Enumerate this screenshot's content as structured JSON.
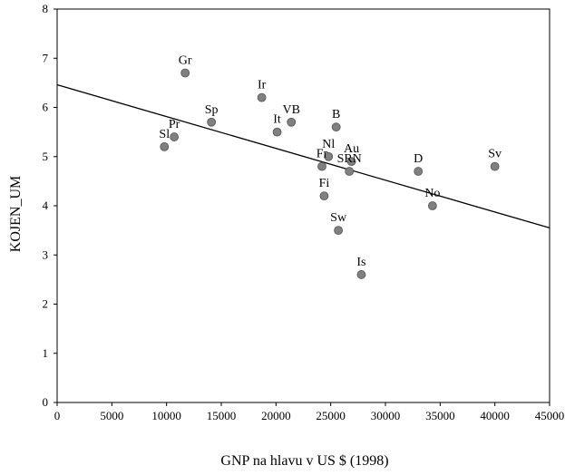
{
  "chart_data": {
    "type": "scatter",
    "xlabel": "GNP na hlavu v US $ (1998)",
    "ylabel": "KOJEN_UM",
    "xlim": [
      0,
      45000
    ],
    "ylim": [
      0,
      8
    ],
    "xticks": [
      0,
      5000,
      10000,
      15000,
      20000,
      25000,
      30000,
      35000,
      40000,
      45000
    ],
    "yticks": [
      0,
      1,
      2,
      3,
      4,
      5,
      6,
      7,
      8
    ],
    "grid": false,
    "marker_color": "#808080",
    "points": [
      {
        "label": "Gr",
        "x": 11700,
        "y": 6.7
      },
      {
        "label": "Ir",
        "x": 18700,
        "y": 6.2
      },
      {
        "label": "Sp",
        "x": 14100,
        "y": 5.7
      },
      {
        "label": "VB",
        "x": 21400,
        "y": 5.7
      },
      {
        "label": "B",
        "x": 25500,
        "y": 5.6
      },
      {
        "label": "It",
        "x": 20100,
        "y": 5.5
      },
      {
        "label": "Pr",
        "x": 10700,
        "y": 5.4
      },
      {
        "label": "Sl",
        "x": 9800,
        "y": 5.2
      },
      {
        "label": "Nl",
        "x": 24800,
        "y": 5.0
      },
      {
        "label": "Au",
        "x": 26900,
        "y": 4.9
      },
      {
        "label": "Fr",
        "x": 24200,
        "y": 4.8
      },
      {
        "label": "SRN",
        "x": 26700,
        "y": 4.7
      },
      {
        "label": "D",
        "x": 33000,
        "y": 4.7
      },
      {
        "label": "Sv",
        "x": 40000,
        "y": 4.8
      },
      {
        "label": "Fi",
        "x": 24400,
        "y": 4.2
      },
      {
        "label": "No",
        "x": 34300,
        "y": 4.0
      },
      {
        "label": "Sw",
        "x": 25700,
        "y": 3.5
      },
      {
        "label": "Is",
        "x": 27800,
        "y": 2.6
      }
    ],
    "fit_line": {
      "x": [
        0,
        45000
      ],
      "y": [
        6.46,
        3.55
      ]
    }
  }
}
